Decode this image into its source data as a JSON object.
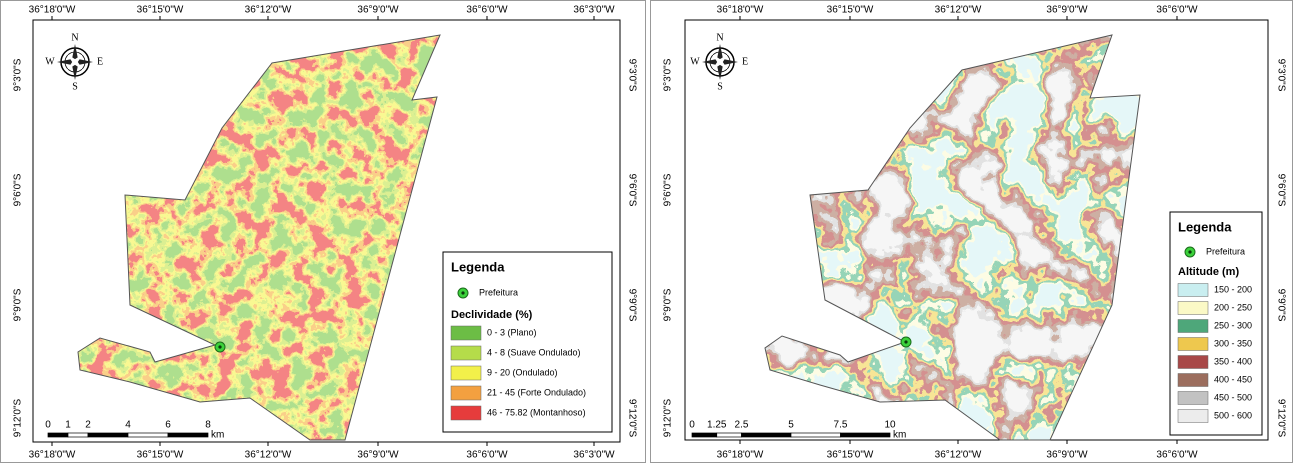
{
  "panels": [
    {
      "lon_labels": [
        "36°18'0\"W",
        "36°15'0\"W",
        "36°12'0\"W",
        "36°9'0\"W",
        "36°6'0\"W",
        "36°3'0\"W"
      ],
      "lat_labels": [
        "9°3'0\"S",
        "9°6'0\"S",
        "9°9'0\"S",
        "9°12'0\"S"
      ],
      "compass": {
        "n": "N",
        "s": "S",
        "e": "E",
        "w": "W"
      },
      "legend": {
        "title": "Legenda",
        "point_label": "Prefeitura",
        "section_title": "Declividade (%)",
        "items": [
          {
            "label": "0 - 3 (Plano)",
            "color": "#6cbd45"
          },
          {
            "label": "4 - 8 (Suave Ondulado)",
            "color": "#b5dc4a"
          },
          {
            "label": "9 - 20 (Ondulado)",
            "color": "#f2f04a"
          },
          {
            "label": "21 - 45 (Forte Ondulado)",
            "color": "#f3a040"
          },
          {
            "label": "46 - 75.82 (Montanhoso)",
            "color": "#e63c3c"
          }
        ]
      },
      "scale": {
        "ticks": [
          0,
          1,
          2,
          4,
          6,
          8
        ],
        "unit": "km"
      }
    },
    {
      "lon_labels": [
        "36°18'0\"W",
        "36°15'0\"W",
        "36°12'0\"W",
        "36°9'0\"W",
        "36°6'0\"W"
      ],
      "lat_labels": [
        "9°3'0\"S",
        "9°6'0\"S",
        "9°9'0\"S",
        "9°12'0\"S"
      ],
      "compass": {
        "n": "N",
        "s": "S",
        "e": "E",
        "w": "W"
      },
      "legend": {
        "title": "Legenda",
        "point_label": "Prefeitura",
        "section_title": "Altitude (m)",
        "items": [
          {
            "label": "150 - 200",
            "color": "#c9eef0"
          },
          {
            "label": "200 - 250",
            "color": "#fbf9c6"
          },
          {
            "label": "250 - 300",
            "color": "#4ea77a"
          },
          {
            "label": "300 - 350",
            "color": "#eec84e"
          },
          {
            "label": "350 - 400",
            "color": "#a84848"
          },
          {
            "label": "400 - 450",
            "color": "#9c6e5e"
          },
          {
            "label": "450 - 500",
            "color": "#c2c2c2"
          },
          {
            "label": "500 - 600",
            "color": "#ececec"
          }
        ]
      },
      "scale": {
        "ticks": [
          0,
          1.25,
          2.5,
          5,
          7.5,
          10
        ],
        "unit": "km"
      }
    }
  ]
}
